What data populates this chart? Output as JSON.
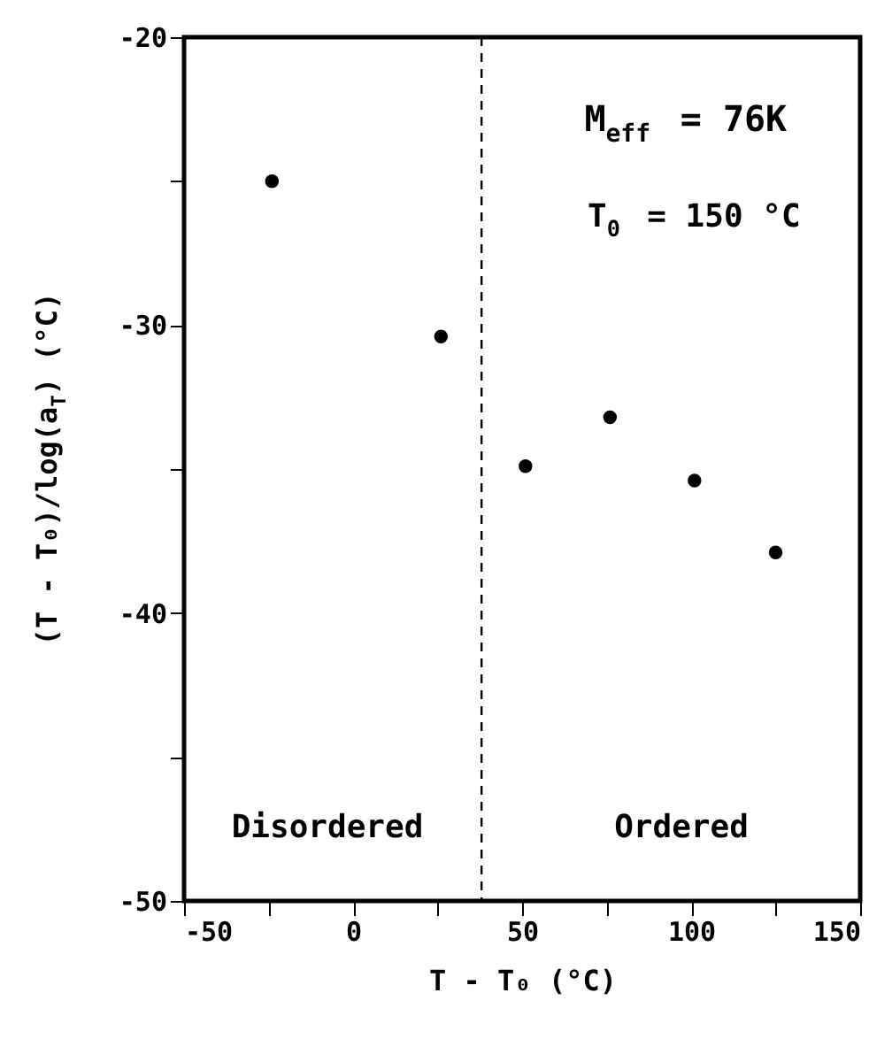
{
  "chart_data": {
    "type": "scatter",
    "xlabel": "T - T₀ (°C)",
    "ylabel": "(T - T₀)/log(a$_{T}$) (°C)",
    "x": [
      -24,
      26,
      51,
      76,
      101,
      125
    ],
    "series": [
      {
        "color": "#000000",
        "values": [
          -25,
          -30.4,
          -34.9,
          -33.2,
          -35.4,
          -37.9
        ]
      }
    ],
    "xlim": [
      -50,
      150
    ],
    "ylim": [
      -50,
      -20
    ],
    "xticks": [
      -50,
      {
        "value": -25,
        "label": null
      },
      0,
      {
        "value": 25,
        "label": null
      },
      50,
      {
        "value": 75,
        "label": null
      },
      100,
      {
        "value": 125,
        "label": null
      },
      150
    ],
    "yticks": [
      -50,
      {
        "value": -45,
        "label": null
      },
      -40,
      {
        "value": -35,
        "label": null
      },
      -30,
      {
        "value": -25,
        "label": null
      },
      -20
    ],
    "ref_lines": [
      {
        "axis": "x",
        "value": 38,
        "line_style": "dashed",
        "color": "#000000"
      }
    ],
    "annotations": [
      "M$_{eff}$ = 76K",
      "T$_{0}$ = 150 °C",
      "Disordered",
      "Ordered"
    ],
    "grid": false,
    "marker": "circle"
  }
}
